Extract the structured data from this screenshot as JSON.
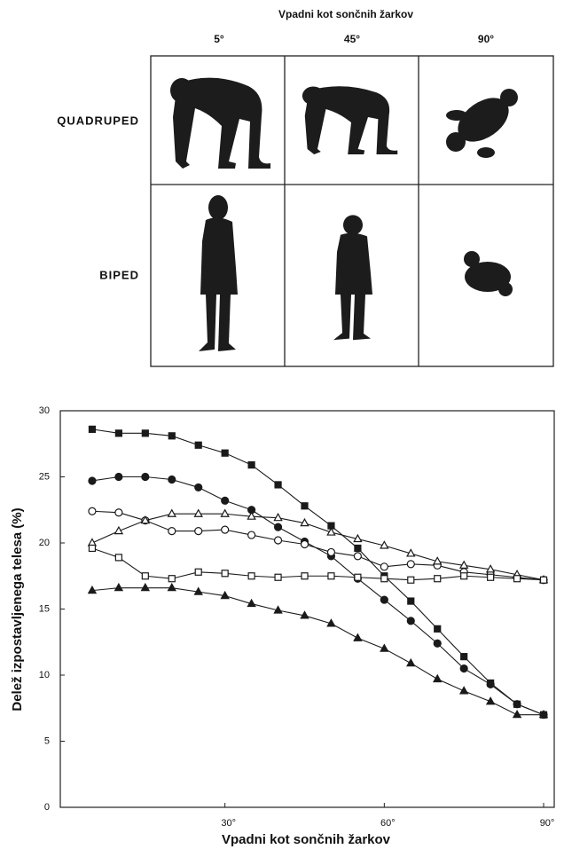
{
  "figure": {
    "title": "Vpadni kot sončnih žarkov",
    "columns": [
      "5°",
      "45°",
      "90°"
    ],
    "rows": [
      "QUADRUPED",
      "BIPED"
    ]
  },
  "chart_data": {
    "type": "line",
    "xlabel": "Vpadni kot sončnih žarkov",
    "ylabel": "Delež izpostavljenega telesa (%)",
    "x": [
      5,
      10,
      15,
      20,
      25,
      30,
      35,
      40,
      45,
      50,
      55,
      60,
      65,
      70,
      75,
      80,
      85,
      90
    ],
    "xlim": [
      -1,
      92
    ],
    "ylim": [
      0,
      30
    ],
    "xticks": [
      {
        "value": 30,
        "label": "30°"
      },
      {
        "value": 60,
        "label": "60°"
      },
      {
        "value": 90,
        "label": "90°"
      }
    ],
    "yticks": [
      0,
      5,
      10,
      15,
      20,
      25,
      30
    ],
    "series": [
      {
        "marker": "square-filled",
        "color": "#1a1a1a",
        "values": [
          28.6,
          28.3,
          28.3,
          28.1,
          27.4,
          26.8,
          25.9,
          24.4,
          22.8,
          21.3,
          19.6,
          17.5,
          15.6,
          13.5,
          11.4,
          9.4,
          7.8,
          7.0
        ]
      },
      {
        "marker": "circle-filled",
        "color": "#1a1a1a",
        "values": [
          24.7,
          25.0,
          25.0,
          24.8,
          24.2,
          23.2,
          22.5,
          21.2,
          20.1,
          19.0,
          17.3,
          15.7,
          14.1,
          12.4,
          10.5,
          9.3,
          7.8,
          7.0
        ]
      },
      {
        "marker": "circle-open",
        "color": "#1a1a1a",
        "values": [
          22.4,
          22.3,
          21.7,
          20.9,
          20.9,
          21.0,
          20.6,
          20.2,
          19.9,
          19.3,
          19.0,
          18.2,
          18.4,
          18.3,
          17.8,
          17.6,
          17.4,
          17.2
        ]
      },
      {
        "marker": "triangle-open",
        "color": "#1a1a1a",
        "values": [
          20.0,
          20.9,
          21.7,
          22.2,
          22.2,
          22.2,
          22.0,
          21.9,
          21.5,
          20.8,
          20.3,
          19.8,
          19.2,
          18.6,
          18.3,
          18.0,
          17.6,
          17.2
        ]
      },
      {
        "marker": "square-open",
        "color": "#1a1a1a",
        "values": [
          19.6,
          18.9,
          17.5,
          17.3,
          17.8,
          17.7,
          17.5,
          17.4,
          17.5,
          17.5,
          17.4,
          17.3,
          17.2,
          17.3,
          17.5,
          17.4,
          17.3,
          17.2
        ]
      },
      {
        "marker": "triangle-filled",
        "color": "#1a1a1a",
        "values": [
          16.4,
          16.6,
          16.6,
          16.6,
          16.3,
          16.0,
          15.4,
          14.9,
          14.5,
          13.9,
          12.8,
          12.0,
          10.9,
          9.7,
          8.8,
          8.0,
          7.0,
          7.0
        ]
      }
    ]
  }
}
